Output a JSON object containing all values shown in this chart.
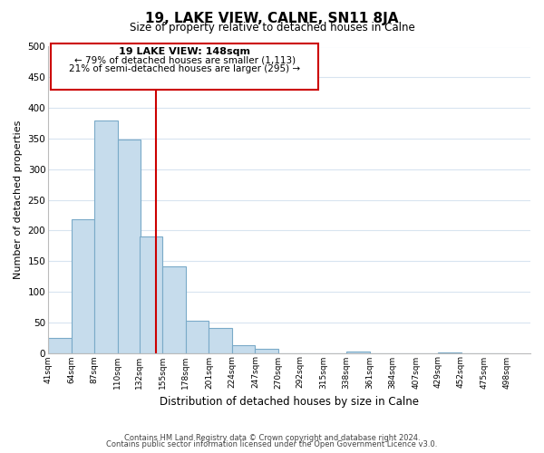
{
  "title": "19, LAKE VIEW, CALNE, SN11 8JA",
  "subtitle": "Size of property relative to detached houses in Calne",
  "xlabel": "Distribution of detached houses by size in Calne",
  "ylabel": "Number of detached properties",
  "bar_left_edges": [
    41,
    64,
    87,
    110,
    132,
    155,
    178,
    201,
    224,
    247,
    270,
    292,
    315,
    338,
    361,
    384,
    407,
    429,
    452,
    475
  ],
  "bar_heights": [
    24,
    218,
    379,
    349,
    190,
    142,
    53,
    40,
    13,
    7,
    0,
    0,
    0,
    2,
    0,
    0,
    0,
    1,
    0,
    0
  ],
  "bin_width": 23,
  "bar_color": "#c6dcec",
  "bar_edge_color": "#7aaac8",
  "vline_x": 148,
  "vline_color": "#cc0000",
  "ylim": [
    0,
    500
  ],
  "yticks": [
    0,
    50,
    100,
    150,
    200,
    250,
    300,
    350,
    400,
    450,
    500
  ],
  "x_tick_labels": [
    "41sqm",
    "64sqm",
    "87sqm",
    "110sqm",
    "132sqm",
    "155sqm",
    "178sqm",
    "201sqm",
    "224sqm",
    "247sqm",
    "270sqm",
    "292sqm",
    "315sqm",
    "338sqm",
    "361sqm",
    "384sqm",
    "407sqm",
    "429sqm",
    "452sqm",
    "475sqm",
    "498sqm"
  ],
  "annotation_title": "19 LAKE VIEW: 148sqm",
  "annotation_line1": "← 79% of detached houses are smaller (1,113)",
  "annotation_line2": "21% of semi-detached houses are larger (295) →",
  "annotation_box_color": "#ffffff",
  "annotation_box_edge": "#cc0000",
  "footnote1": "Contains HM Land Registry data © Crown copyright and database right 2024.",
  "footnote2": "Contains public sector information licensed under the Open Government Licence v3.0.",
  "background_color": "#ffffff",
  "grid_color": "#d8e4f0"
}
